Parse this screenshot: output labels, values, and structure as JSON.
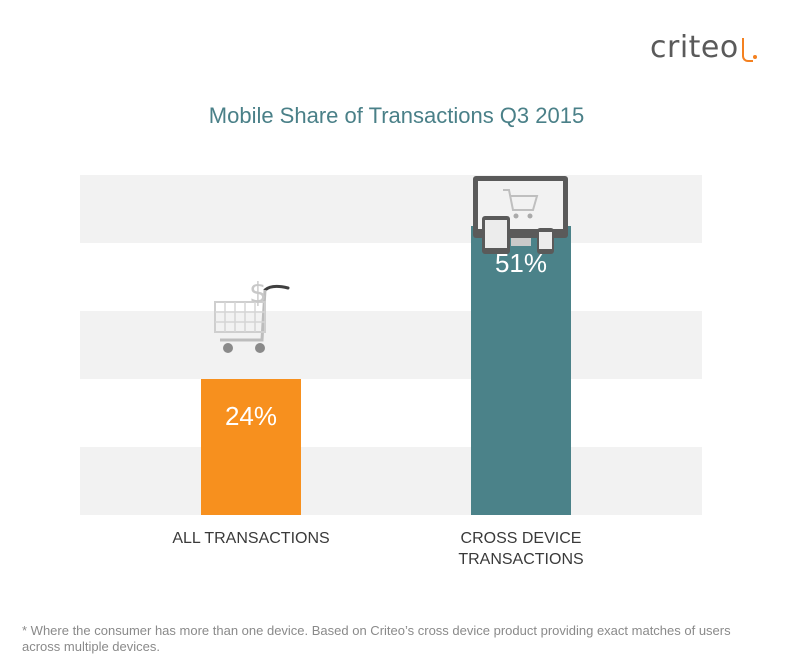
{
  "logo": {
    "text": "criteo"
  },
  "chart_data": {
    "type": "bar",
    "title": "Mobile Share of Transactions Q3 2015",
    "categories": [
      "ALL TRANSACTIONS",
      "CROSS DEVICE TRANSACTIONS"
    ],
    "category_lines": [
      [
        "ALL TRANSACTIONS"
      ],
      [
        "CROSS DEVICE",
        "TRANSACTIONS"
      ]
    ],
    "values": [
      24,
      51
    ],
    "value_labels": [
      "24%",
      "51%"
    ],
    "colors": [
      "#f7901e",
      "#4b8289"
    ],
    "ylim": [
      0,
      60
    ],
    "grid_bands": "alternating light grey bands",
    "xlabel": "",
    "ylabel": ""
  },
  "icons": [
    "shopping-cart-dollar-icon",
    "multi-device-cart-icon"
  ],
  "footnote": "* Where the consumer has more than one device. Based on Criteo’s cross device product providing exact matches of users across multiple devices."
}
